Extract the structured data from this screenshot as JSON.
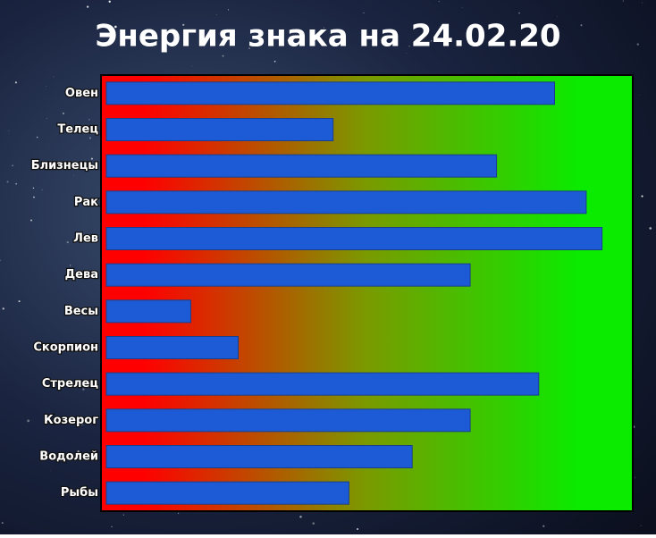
{
  "chart_data": {
    "type": "bar",
    "orientation": "horizontal",
    "title": "Энергия знака на 24.02.20",
    "categories": [
      "Овен",
      "Телец",
      "Близнецы",
      "Рак",
      "Лев",
      "Дева",
      "Весы",
      "Скорпион",
      "Стрелец",
      "Козерог",
      "Водолей",
      "Рыбы"
    ],
    "values": [
      85,
      43,
      74,
      91,
      94,
      69,
      16,
      25,
      82,
      69,
      58,
      46
    ],
    "color": "#1d5bd6",
    "xlim": [
      0,
      100
    ]
  }
}
